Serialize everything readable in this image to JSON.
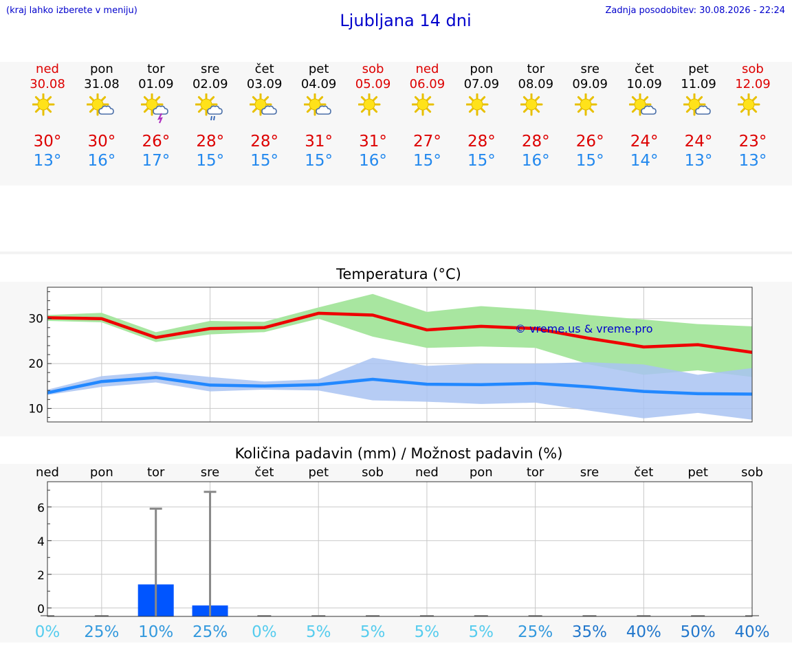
{
  "header": {
    "note": "(kraj lahko izberete v meniju)",
    "title": "Ljubljana 14 dni",
    "update": "Zadnja posodobitev: 30.08.2026 - 22:24"
  },
  "days": [
    {
      "name": "ned",
      "date": "30.08",
      "icon": "sun-icon",
      "max": "30°",
      "min": "13°",
      "weekend": true
    },
    {
      "name": "pon",
      "date": "31.08",
      "icon": "sun-cloud-icon",
      "max": "30°",
      "min": "16°",
      "weekend": false
    },
    {
      "name": "tor",
      "date": "01.09",
      "icon": "sun-storm-icon",
      "max": "26°",
      "min": "17°",
      "weekend": false
    },
    {
      "name": "sre",
      "date": "02.09",
      "icon": "sun-rain-icon",
      "max": "28°",
      "min": "15°",
      "weekend": false
    },
    {
      "name": "čet",
      "date": "03.09",
      "icon": "sun-cloud-icon",
      "max": "28°",
      "min": "15°",
      "weekend": false
    },
    {
      "name": "pet",
      "date": "04.09",
      "icon": "sun-cloud-icon",
      "max": "31°",
      "min": "15°",
      "weekend": false
    },
    {
      "name": "sob",
      "date": "05.09",
      "icon": "sun-icon",
      "max": "31°",
      "min": "16°",
      "weekend": true
    },
    {
      "name": "ned",
      "date": "06.09",
      "icon": "sun-icon",
      "max": "27°",
      "min": "15°",
      "weekend": true
    },
    {
      "name": "pon",
      "date": "07.09",
      "icon": "sun-icon",
      "max": "28°",
      "min": "15°",
      "weekend": false
    },
    {
      "name": "tor",
      "date": "08.09",
      "icon": "sun-icon",
      "max": "28°",
      "min": "16°",
      "weekend": false
    },
    {
      "name": "sre",
      "date": "09.09",
      "icon": "sun-icon",
      "max": "26°",
      "min": "15°",
      "weekend": false
    },
    {
      "name": "čet",
      "date": "10.09",
      "icon": "sun-cloud-icon",
      "max": "24°",
      "min": "14°",
      "weekend": false
    },
    {
      "name": "pet",
      "date": "11.09",
      "icon": "sun-cloud-icon",
      "max": "24°",
      "min": "13°",
      "weekend": false
    },
    {
      "name": "sob",
      "date": "12.09",
      "icon": "sun-icon",
      "max": "23°",
      "min": "13°",
      "weekend": true
    }
  ],
  "colors": {
    "max": "#dd0000",
    "min": "#2288ee",
    "max_band": "#a8e6a0",
    "min_band": "#a9c3f2",
    "max_line": "#ee0000",
    "min_line": "#2288ff",
    "bar": "#0055ff",
    "whisker": "#888888"
  },
  "chart_data": [
    {
      "type": "line",
      "title": "Temperatura (°C)",
      "watermark": "© vreme.us & vreme.pro",
      "x": [
        "30.08",
        "31.08",
        "01.09",
        "02.09",
        "03.09",
        "04.09",
        "05.09",
        "06.09",
        "07.09",
        "08.09",
        "09.09",
        "10.09",
        "11.09",
        "12.09"
      ],
      "ylim": [
        7,
        37
      ],
      "yticks": [
        10,
        20,
        30
      ],
      "grid": true,
      "series": [
        {
          "values": [
            30.2,
            30.0,
            25.8,
            27.8,
            28.0,
            31.2,
            30.8,
            27.5,
            28.3,
            27.8,
            25.6,
            23.7,
            24.2,
            22.5
          ],
          "band_low": [
            29.5,
            29.2,
            24.8,
            26.5,
            27.0,
            30.0,
            26.0,
            23.5,
            23.8,
            23.5,
            19.8,
            17.5,
            18.5,
            17.0
          ],
          "band_high": [
            30.8,
            31.3,
            27.0,
            29.5,
            29.3,
            32.5,
            35.5,
            31.5,
            32.8,
            32.0,
            30.8,
            29.8,
            28.8,
            28.3
          ]
        },
        {
          "values": [
            13.5,
            16.0,
            16.9,
            15.2,
            15.0,
            15.3,
            16.5,
            15.4,
            15.3,
            15.6,
            14.8,
            13.8,
            13.3,
            13.2
          ],
          "band_low": [
            13.0,
            14.8,
            15.8,
            13.8,
            14.2,
            14.0,
            11.8,
            11.5,
            11.0,
            11.3,
            9.5,
            7.8,
            9.0,
            7.5
          ],
          "band_high": [
            14.2,
            17.2,
            18.2,
            17.0,
            16.0,
            16.5,
            21.3,
            19.5,
            20.0,
            20.0,
            20.3,
            19.8,
            17.5,
            19.0
          ]
        }
      ]
    },
    {
      "type": "bar",
      "title": "Količina padavin (mm) / Možnost padavin (%)",
      "categories": [
        "ned",
        "pon",
        "tor",
        "sre",
        "čet",
        "pet",
        "sob",
        "ned",
        "pon",
        "tor",
        "sre",
        "čet",
        "pet",
        "sob"
      ],
      "values": [
        0,
        0,
        1.4,
        0.15,
        0,
        0,
        0,
        0,
        0,
        0,
        0,
        0,
        0,
        0
      ],
      "whisker_max": [
        0,
        0,
        5.9,
        6.9,
        0,
        0,
        0,
        0,
        0,
        0,
        0,
        0,
        0,
        0
      ],
      "probability": [
        "0%",
        "25%",
        "10%",
        "25%",
        "0%",
        "5%",
        "5%",
        "5%",
        "5%",
        "25%",
        "35%",
        "40%",
        "50%",
        "40%"
      ],
      "probability_values": [
        0,
        25,
        10,
        25,
        0,
        5,
        5,
        5,
        5,
        25,
        35,
        40,
        50,
        40
      ],
      "ylim": [
        -0.5,
        7.5
      ],
      "yticks": [
        0,
        2,
        4,
        6
      ],
      "grid": true
    }
  ]
}
